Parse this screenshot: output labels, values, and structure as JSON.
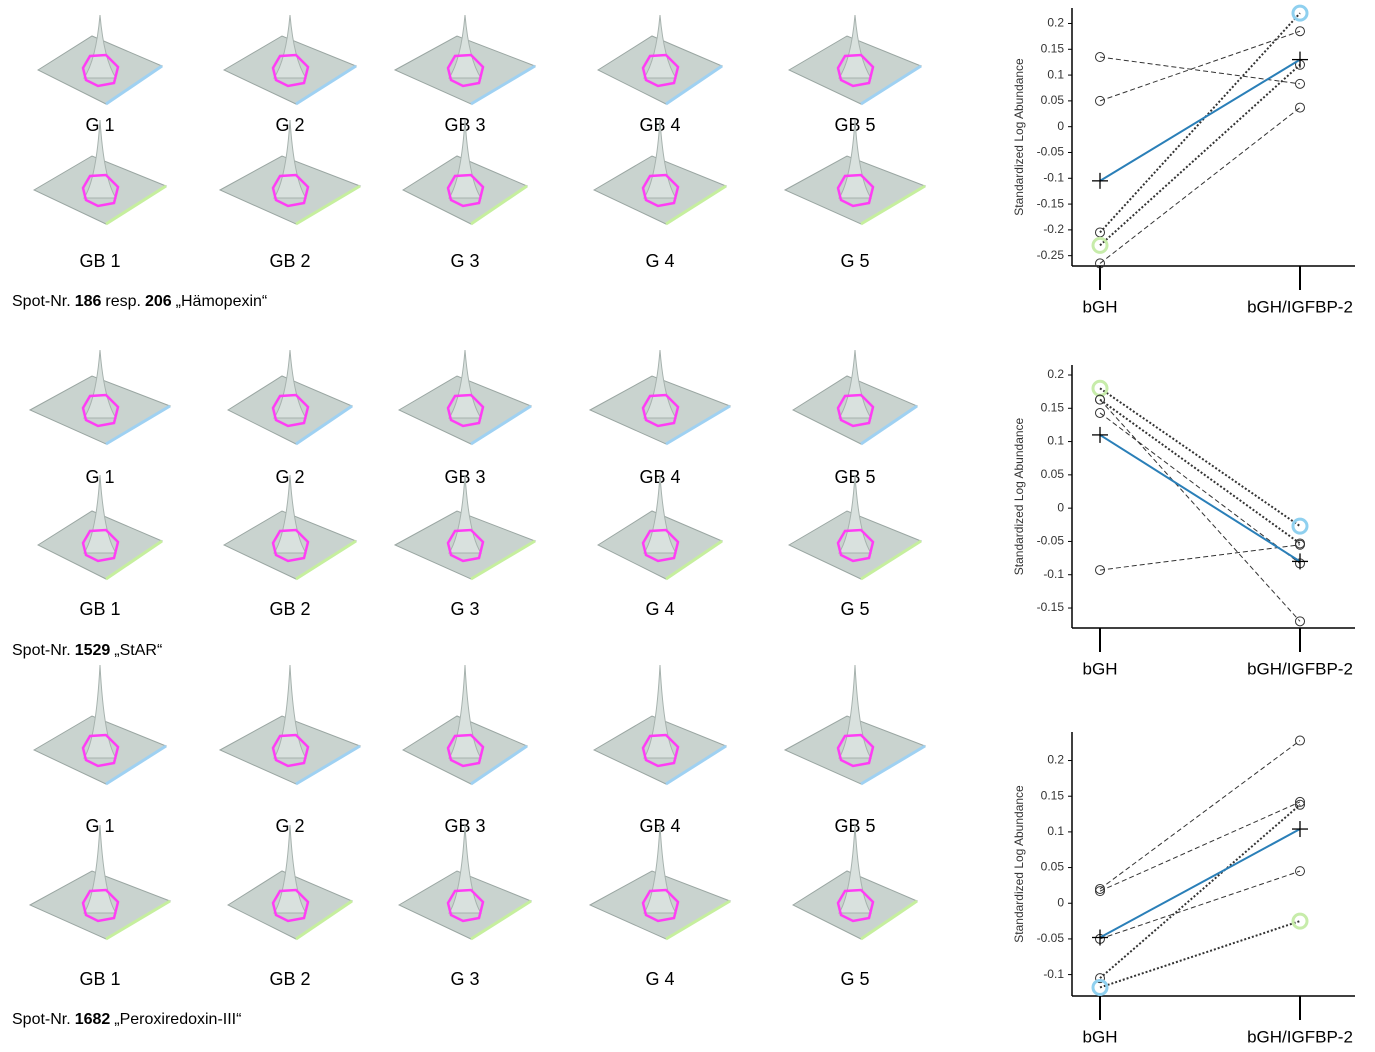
{
  "panels": [
    {
      "top_labels": [
        "G 1",
        "G 2",
        "GB 3",
        "GB 4",
        "GB 5"
      ],
      "bottom_labels": [
        "GB 1",
        "GB 2",
        "G 3",
        "G 4",
        "G 5"
      ],
      "caption": {
        "prefix": "Spot-Nr.",
        "spots": [
          "186",
          "206"
        ],
        "joiner": "resp.",
        "name": "„Hämopexin“"
      }
    },
    {
      "top_labels": [
        "G 1",
        "G 2",
        "GB 3",
        "GB 4",
        "GB 5"
      ],
      "bottom_labels": [
        "GB 1",
        "GB 2",
        "G 3",
        "G 4",
        "G 5"
      ],
      "caption": {
        "prefix": "Spot-Nr.",
        "spots": [
          "1529"
        ],
        "name": "„StAR“"
      }
    },
    {
      "top_labels": [
        "G 1",
        "G 2",
        "GB 3",
        "GB 4",
        "GB 5"
      ],
      "bottom_labels": [
        "GB 1",
        "GB 2",
        "G 3",
        "G 4",
        "G 5"
      ],
      "caption": {
        "prefix": "Spot-Nr.",
        "spots": [
          "1682"
        ],
        "name": "„Peroxiredoxin-III“"
      }
    }
  ],
  "chart_data": [
    {
      "type": "line",
      "categories": [
        "bGH",
        "bGH/IGFBP-2"
      ],
      "y_label": "Standardized Log Abundance",
      "ylim": [
        -0.27,
        0.23
      ],
      "yticks": [
        0.2,
        0.15,
        0.1,
        0.05,
        0,
        -0.05,
        -0.1,
        -0.15,
        -0.2,
        -0.25
      ],
      "series": [
        {
          "color": "#333333",
          "style": "dashed",
          "values": [
            0.135,
            0.083
          ]
        },
        {
          "color": "#333333",
          "style": "dashed",
          "values": [
            0.05,
            0.185
          ]
        },
        {
          "color": "#333333",
          "style": "dotted",
          "values": [
            -0.205,
            0.22
          ],
          "marker_colors": [
            "#333333",
            "#8fd0ef"
          ]
        },
        {
          "color": "#333333",
          "style": "dotted",
          "values": [
            -0.23,
            0.12
          ],
          "marker_colors": [
            "#c7ecaa",
            "#333333"
          ]
        },
        {
          "color": "#333333",
          "style": "dashed",
          "values": [
            -0.265,
            0.037
          ]
        },
        {
          "color": "#2a7fb8",
          "style": "solid",
          "marker": "plus",
          "values": [
            -0.105,
            0.13
          ]
        }
      ]
    },
    {
      "type": "line",
      "categories": [
        "bGH",
        "bGH/IGFBP-2"
      ],
      "y_label": "Standardized Log Abundance",
      "ylim": [
        -0.18,
        0.215
      ],
      "yticks": [
        0.2,
        0.15,
        0.1,
        0.05,
        0,
        -0.05,
        -0.1,
        -0.15
      ],
      "series": [
        {
          "color": "#333333",
          "style": "dotted",
          "values": [
            0.18,
            -0.027
          ],
          "marker_colors": [
            "#c7ecaa",
            "#8fd0ef"
          ]
        },
        {
          "color": "#333333",
          "style": "dotted",
          "values": [
            0.163,
            -0.053
          ]
        },
        {
          "color": "#333333",
          "style": "dashed",
          "values": [
            0.143,
            -0.083
          ]
        },
        {
          "color": "#333333",
          "style": "dashed",
          "values": [
            0.163,
            -0.17
          ]
        },
        {
          "color": "#333333",
          "style": "dashed",
          "values": [
            -0.093,
            -0.055
          ]
        },
        {
          "color": "#2a7fb8",
          "style": "solid",
          "marker": "plus",
          "values": [
            0.11,
            -0.08
          ]
        }
      ]
    },
    {
      "type": "line",
      "categories": [
        "bGH",
        "bGH/IGFBP-2"
      ],
      "y_label": "Standardized Log Abundance",
      "ylim": [
        -0.13,
        0.24
      ],
      "yticks": [
        0.2,
        0.15,
        0.1,
        0.05,
        0,
        -0.05,
        -0.1
      ],
      "series": [
        {
          "color": "#333333",
          "style": "dashed",
          "values": [
            0.02,
            0.228
          ]
        },
        {
          "color": "#333333",
          "style": "dashed",
          "values": [
            0.017,
            0.142
          ]
        },
        {
          "color": "#333333",
          "style": "dotted",
          "values": [
            -0.105,
            0.138
          ]
        },
        {
          "color": "#333333",
          "style": "dotted",
          "values": [
            -0.118,
            -0.025
          ],
          "marker_colors": [
            "#8fd0ef",
            "#c7ecaa"
          ]
        },
        {
          "color": "#333333",
          "style": "dashed",
          "values": [
            -0.05,
            0.045
          ]
        },
        {
          "color": "#2a7fb8",
          "style": "solid",
          "marker": "plus",
          "values": [
            -0.048,
            0.104
          ]
        }
      ]
    }
  ]
}
